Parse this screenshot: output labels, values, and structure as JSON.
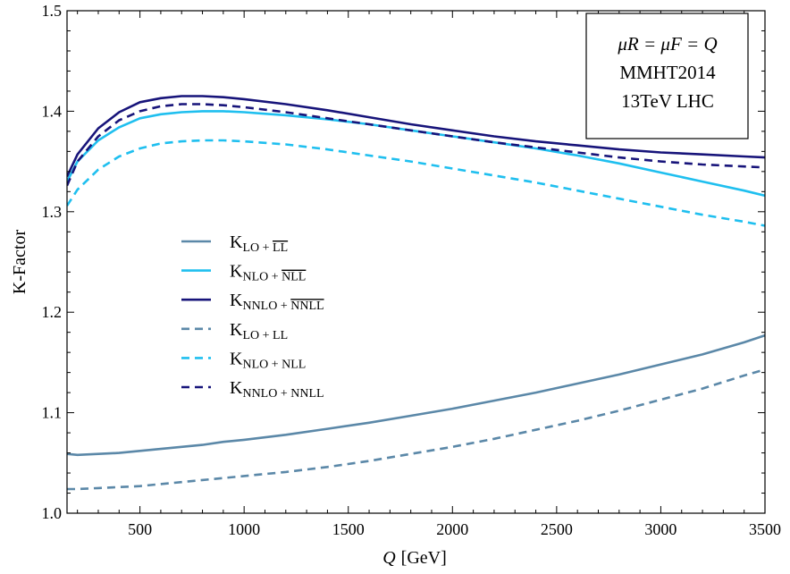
{
  "chart_data": {
    "type": "line",
    "xlabel": "[GeV]",
    "xlabel_var": "Q",
    "ylabel": "K-Factor",
    "xlim": [
      150,
      3500
    ],
    "ylim": [
      1.0,
      1.5
    ],
    "xticks": [
      500,
      1000,
      1500,
      2000,
      2500,
      3000,
      3500
    ],
    "yticks": [
      1.0,
      1.1,
      1.2,
      1.3,
      1.4,
      1.5
    ],
    "ytick_labels": [
      "1.0",
      "1.1",
      "1.2",
      "1.3",
      "1.4",
      "1.5"
    ],
    "grid": false,
    "legend_position": "center-left",
    "info_box": {
      "line1": "μR = μF = Q",
      "line2": "MMHT2014",
      "line3": "13TeV LHC"
    },
    "series": [
      {
        "key": "LO+LLbar",
        "legend_main": "K",
        "legend_sub": "LO + LL",
        "legend_sub_prefix": "LO + ",
        "legend_sub_over": "LL",
        "color": "#5b88a8",
        "dash": "solid",
        "x": [
          150,
          200,
          300,
          400,
          500,
          600,
          700,
          800,
          900,
          1000,
          1200,
          1400,
          1600,
          1800,
          2000,
          2200,
          2400,
          2600,
          2800,
          3000,
          3200,
          3400,
          3500
        ],
        "y": [
          1.059,
          1.058,
          1.059,
          1.06,
          1.062,
          1.064,
          1.066,
          1.068,
          1.071,
          1.073,
          1.078,
          1.084,
          1.09,
          1.097,
          1.104,
          1.112,
          1.12,
          1.129,
          1.138,
          1.148,
          1.158,
          1.17,
          1.177
        ]
      },
      {
        "key": "NLO+NLLbar",
        "legend_main": "K",
        "legend_sub": "NLO + NLL",
        "legend_sub_prefix": "NLO + ",
        "legend_sub_over": "NLL",
        "color": "#1fbfef",
        "dash": "solid",
        "x": [
          150,
          200,
          300,
          400,
          500,
          600,
          700,
          800,
          900,
          1000,
          1200,
          1400,
          1600,
          1800,
          2000,
          2200,
          2400,
          2600,
          2800,
          3000,
          3200,
          3400,
          3500
        ],
        "y": [
          1.33,
          1.35,
          1.371,
          1.384,
          1.393,
          1.397,
          1.399,
          1.4,
          1.4,
          1.399,
          1.396,
          1.392,
          1.387,
          1.381,
          1.375,
          1.369,
          1.363,
          1.356,
          1.348,
          1.339,
          1.33,
          1.321,
          1.316
        ]
      },
      {
        "key": "NNLO+NNLLbar",
        "legend_main": "K",
        "legend_sub": "NNLO + NNLL",
        "legend_sub_prefix": "NNLO + ",
        "legend_sub_over": "NNLL",
        "color": "#17147a",
        "dash": "solid",
        "x": [
          150,
          200,
          300,
          400,
          500,
          600,
          700,
          800,
          900,
          1000,
          1200,
          1400,
          1600,
          1800,
          2000,
          2200,
          2400,
          2600,
          2800,
          3000,
          3200,
          3400,
          3500
        ],
        "y": [
          1.335,
          1.357,
          1.383,
          1.399,
          1.409,
          1.413,
          1.415,
          1.415,
          1.414,
          1.412,
          1.407,
          1.401,
          1.394,
          1.387,
          1.381,
          1.375,
          1.37,
          1.366,
          1.362,
          1.359,
          1.357,
          1.355,
          1.354
        ]
      },
      {
        "key": "LO+LL",
        "legend_main": "K",
        "legend_sub": "LO + LL",
        "legend_sub_prefix": "LO + LL",
        "legend_sub_over": "",
        "color": "#5b88a8",
        "dash": "dashed",
        "x": [
          150,
          200,
          300,
          400,
          500,
          600,
          700,
          800,
          900,
          1000,
          1200,
          1400,
          1600,
          1800,
          2000,
          2200,
          2400,
          2600,
          2800,
          3000,
          3200,
          3400,
          3500
        ],
        "y": [
          1.024,
          1.024,
          1.025,
          1.026,
          1.027,
          1.029,
          1.031,
          1.033,
          1.035,
          1.037,
          1.041,
          1.046,
          1.052,
          1.059,
          1.066,
          1.074,
          1.083,
          1.092,
          1.102,
          1.113,
          1.124,
          1.137,
          1.143
        ]
      },
      {
        "key": "NLO+NLL",
        "legend_main": "K",
        "legend_sub": "NLO + NLL",
        "legend_sub_prefix": "NLO + NLL",
        "legend_sub_over": "",
        "color": "#1fbfef",
        "dash": "dashed",
        "x": [
          150,
          200,
          300,
          400,
          500,
          600,
          700,
          800,
          900,
          1000,
          1200,
          1400,
          1600,
          1800,
          2000,
          2200,
          2400,
          2600,
          2800,
          3000,
          3200,
          3400,
          3500
        ],
        "y": [
          1.306,
          1.322,
          1.342,
          1.355,
          1.363,
          1.368,
          1.37,
          1.371,
          1.371,
          1.37,
          1.367,
          1.362,
          1.356,
          1.35,
          1.343,
          1.336,
          1.329,
          1.321,
          1.313,
          1.305,
          1.297,
          1.29,
          1.286
        ]
      },
      {
        "key": "NNLO+NNLL",
        "legend_main": "K",
        "legend_sub": "NNLO + NNLL",
        "legend_sub_prefix": "NNLO + NNLL",
        "legend_sub_over": "",
        "color": "#17147a",
        "dash": "dashed",
        "x": [
          150,
          200,
          300,
          400,
          500,
          600,
          700,
          800,
          900,
          1000,
          1200,
          1400,
          1600,
          1800,
          2000,
          2200,
          2400,
          2600,
          2800,
          3000,
          3200,
          3400,
          3500
        ],
        "y": [
          1.326,
          1.35,
          1.375,
          1.391,
          1.4,
          1.405,
          1.407,
          1.407,
          1.406,
          1.404,
          1.399,
          1.393,
          1.387,
          1.381,
          1.375,
          1.369,
          1.364,
          1.359,
          1.354,
          1.35,
          1.347,
          1.345,
          1.344
        ]
      }
    ]
  }
}
